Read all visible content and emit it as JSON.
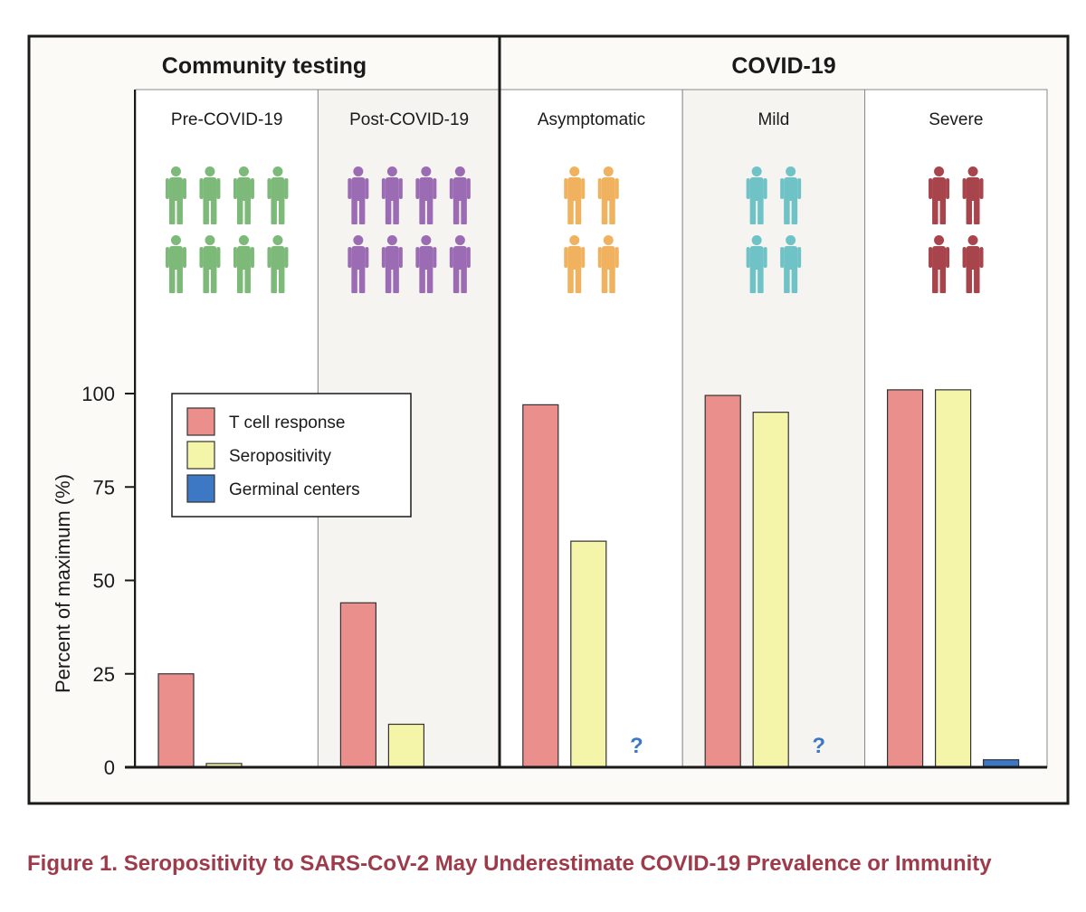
{
  "chart_data": {
    "type": "bar",
    "groups": [
      {
        "name": "Community testing",
        "panels": [
          "Pre-COVID-19",
          "Post-COVID-19"
        ]
      },
      {
        "name": "COVID-19",
        "panels": [
          "Asymptomatic",
          "Mild",
          "Severe"
        ]
      }
    ],
    "categories": [
      "Pre-COVID-19",
      "Post-COVID-19",
      "Asymptomatic",
      "Mild",
      "Severe"
    ],
    "series": [
      {
        "name": "T cell response",
        "color": "#ea8f8c",
        "values": [
          25,
          44,
          97,
          99.5,
          101
        ]
      },
      {
        "name": "Seropositivity",
        "color": "#f4f5a9",
        "values": [
          1,
          11.5,
          60.5,
          95,
          101
        ]
      },
      {
        "name": "Germinal centers",
        "color": "#3c78c3",
        "values": [
          null,
          null,
          null,
          null,
          2
        ]
      }
    ],
    "unknown_markers": [
      {
        "category": "Asymptomatic",
        "series": "Germinal centers",
        "text": "?"
      },
      {
        "category": "Mild",
        "series": "Germinal centers",
        "text": "?"
      }
    ],
    "person_icons": [
      {
        "category": "Pre-COVID-19",
        "count": 8,
        "color": "#7dba7a"
      },
      {
        "category": "Post-COVID-19",
        "count": 8,
        "color": "#9b6cb4"
      },
      {
        "category": "Asymptomatic",
        "count": 4,
        "color": "#f0b25e"
      },
      {
        "category": "Mild",
        "count": 4,
        "color": "#6fc3c6"
      },
      {
        "category": "Severe",
        "count": 4,
        "color": "#a8454c"
      }
    ],
    "panel_backgrounds": [
      "#ffffff",
      "#f5f4f0",
      "#ffffff",
      "#f5f4f0",
      "#ffffff"
    ],
    "yticks": [
      0,
      25,
      50,
      75,
      100
    ],
    "ylim": [
      0,
      110
    ],
    "ylabel": "Percent of maximum (%)",
    "xlabel": "",
    "legend": {
      "position": "top-left",
      "entries": [
        "T cell response",
        "Seropositivity",
        "Germinal centers"
      ]
    },
    "grid": false
  },
  "caption": "Figure 1. Seropositivity to SARS-CoV-2 May Underestimate COVID-19 Prevalence or Immunity"
}
